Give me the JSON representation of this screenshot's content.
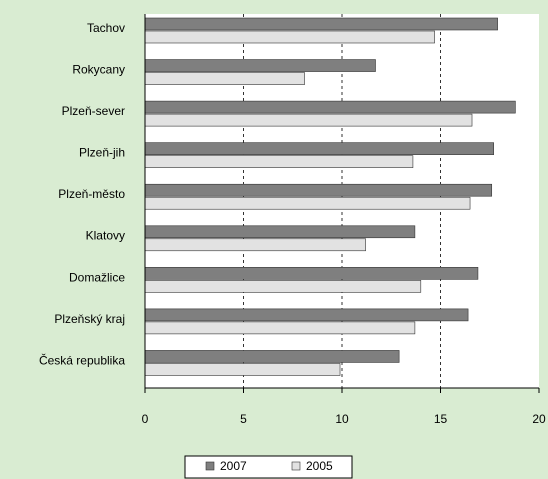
{
  "chart_data": {
    "type": "bar",
    "orientation": "horizontal",
    "categories": [
      "Tachov",
      "Rokycany",
      "Plzeň-sever",
      "Plzeň-jih",
      "Plzeň-město",
      "Klatovy",
      "Domažlice",
      "Plzeňský kraj",
      "Česká republika"
    ],
    "series": [
      {
        "name": "2007",
        "color": "#7f7f7f",
        "values": [
          17.9,
          11.7,
          18.8,
          17.7,
          17.6,
          13.7,
          16.9,
          16.4,
          12.9
        ]
      },
      {
        "name": "2005",
        "color": "#e2e2e2",
        "values": [
          14.7,
          8.1,
          16.6,
          13.6,
          16.5,
          11.2,
          14.0,
          13.7,
          9.9
        ]
      }
    ],
    "xlim": [
      0,
      20
    ],
    "xticks": [
      0,
      5,
      10,
      15,
      20
    ],
    "grid": true,
    "legend": "bottom"
  }
}
